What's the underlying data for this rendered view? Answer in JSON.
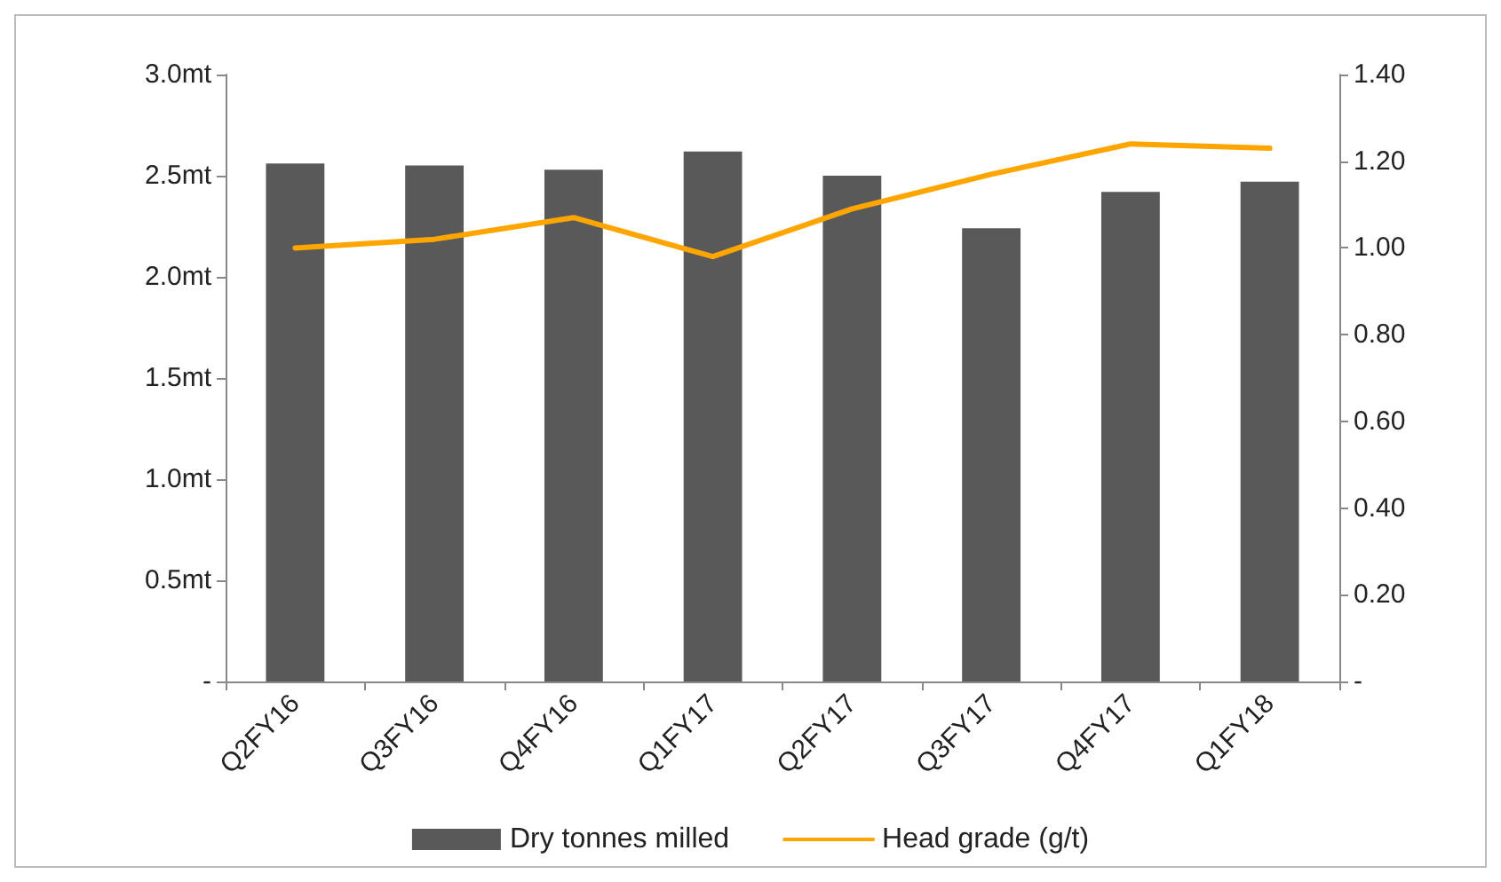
{
  "chart_data": {
    "type": "bar",
    "categories": [
      "Q2FY16",
      "Q3FY16",
      "Q4FY16",
      "Q1FY17",
      "Q2FY17",
      "Q3FY17",
      "Q4FY17",
      "Q1FY18"
    ],
    "series": [
      {
        "name": "Dry tonnes milled",
        "color": "#595959",
        "values": [
          2.56,
          2.55,
          2.53,
          2.62,
          2.5,
          2.24,
          2.42,
          2.47
        ]
      },
      {
        "name": "Head grade (g/t)",
        "type": "line",
        "axis": "y2",
        "color": "#ffa500",
        "values": [
          1.0,
          1.02,
          1.07,
          0.98,
          1.09,
          1.17,
          1.24,
          1.23
        ]
      }
    ],
    "ylim": [
      0,
      3
    ],
    "yticks": [
      {
        "value": 0,
        "label": "-"
      },
      {
        "value": 0.5,
        "label": "0.5mt"
      },
      {
        "value": 1,
        "label": "1.0mt"
      },
      {
        "value": 1.5,
        "label": "1.5mt"
      },
      {
        "value": 2,
        "label": "2.0mt"
      },
      {
        "value": 2.5,
        "label": "2.5mt"
      },
      {
        "value": 3,
        "label": "3.0mt"
      }
    ],
    "y2lim": [
      0,
      1.4
    ],
    "y2ticks": [
      {
        "value": 0,
        "label": "-"
      },
      {
        "value": 0.2,
        "label": "0.20"
      },
      {
        "value": 0.4,
        "label": "0.40"
      },
      {
        "value": 0.6,
        "label": "0.60"
      },
      {
        "value": 0.8,
        "label": "0.80"
      },
      {
        "value": 1,
        "label": "1.00"
      },
      {
        "value": 1.2,
        "label": "1.20"
      },
      {
        "value": 1.4,
        "label": "1.40"
      }
    ],
    "grid": false,
    "legend": "bottom",
    "marker": "none"
  }
}
